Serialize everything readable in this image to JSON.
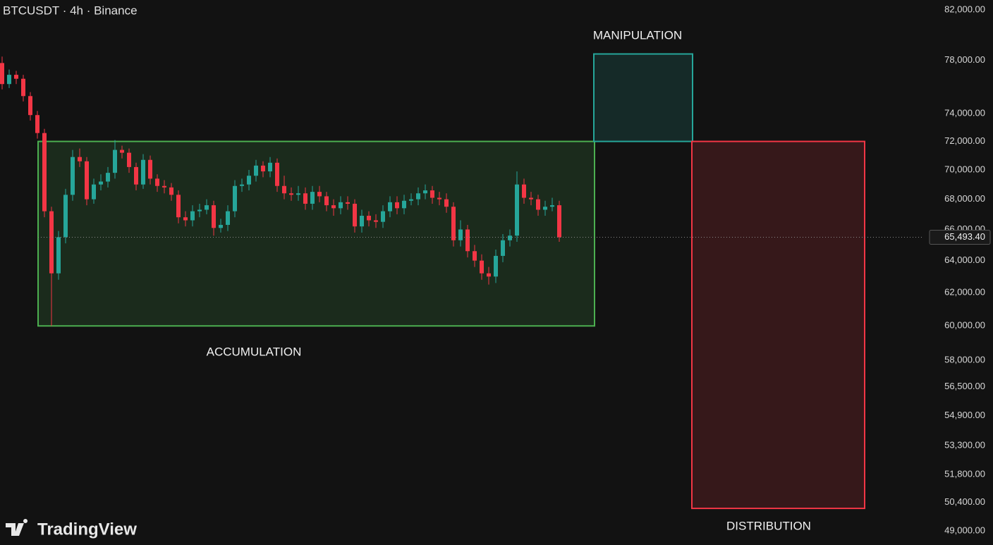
{
  "chart_data": {
    "type": "candlestick",
    "title": "BTCUSDT · 4h · Binance",
    "logo": "TradingView",
    "log_scale": true,
    "ylim": [
      48320,
      82800
    ],
    "yticks": [
      {
        "value": 82000,
        "label": "82,000.00"
      },
      {
        "value": 78000,
        "label": "78,000.00"
      },
      {
        "value": 74000,
        "label": "74,000.00"
      },
      {
        "value": 72000,
        "label": "72,000.00"
      },
      {
        "value": 70000,
        "label": "70,000.00"
      },
      {
        "value": 68000,
        "label": "68,000.00"
      },
      {
        "value": 66000,
        "label": "66,000.00"
      },
      {
        "value": 64000,
        "label": "64,000.00"
      },
      {
        "value": 62000,
        "label": "62,000.00"
      },
      {
        "value": 60000,
        "label": "60,000.00"
      },
      {
        "value": 58000,
        "label": "58,000.00"
      },
      {
        "value": 56500,
        "label": "56,500.00"
      },
      {
        "value": 54900,
        "label": "54,900.00"
      },
      {
        "value": 53300,
        "label": "53,300.00"
      },
      {
        "value": 51800,
        "label": "51,800.00"
      },
      {
        "value": 50400,
        "label": "50,400.00"
      },
      {
        "value": 49000,
        "label": "49,000.00"
      }
    ],
    "up_color": "#26a69a",
    "down_color": "#f23645",
    "open": [
      77800,
      76200,
      76900,
      76600,
      75300,
      73900,
      72600,
      67200,
      63200,
      65500,
      68300,
      70900,
      70600,
      68000,
      69000,
      69200,
      69800,
      71400,
      71200,
      70200,
      69000,
      70700,
      69400,
      68900,
      68800,
      68300,
      66800,
      66600,
      67200,
      67300,
      67600,
      66100,
      66300,
      67200,
      68900,
      69000,
      69600,
      70300,
      69900,
      70500,
      68900,
      68400,
      68300,
      68400,
      67700,
      68500,
      68200,
      67600,
      67400,
      67800,
      67700,
      66200,
      66900,
      66600,
      66500,
      67200,
      67800,
      67400,
      67900,
      68000,
      68400,
      68600,
      68100,
      68000,
      67500,
      65300,
      66000,
      64600,
      64000,
      63200,
      63000,
      64300,
      65300,
      65600,
      69000,
      68100,
      68000,
      67300,
      67500,
      67600
    ],
    "high": [
      78300,
      77300,
      77200,
      76900,
      75600,
      74200,
      72900,
      67500,
      65900,
      68700,
      71400,
      71500,
      70900,
      69400,
      69700,
      70200,
      72100,
      71700,
      71500,
      70500,
      71100,
      71000,
      69700,
      69300,
      69100,
      68600,
      67200,
      67600,
      67700,
      68000,
      67900,
      66700,
      67600,
      69300,
      69400,
      70000,
      70700,
      70600,
      70900,
      70800,
      69600,
      68800,
      68900,
      68800,
      68900,
      68900,
      68500,
      68000,
      68200,
      68200,
      68000,
      67300,
      67200,
      67000,
      67600,
      68200,
      68200,
      68300,
      68400,
      68800,
      69000,
      68900,
      68500,
      68400,
      67800,
      66600,
      66300,
      65000,
      64400,
      63600,
      64700,
      65700,
      66000,
      69900,
      69400,
      68500,
      68300,
      67900,
      68100,
      67900
    ],
    "low": [
      75800,
      75900,
      76200,
      74900,
      73500,
      72200,
      66800,
      60000,
      62800,
      65100,
      67900,
      70200,
      67600,
      67700,
      68600,
      68800,
      69400,
      70800,
      69800,
      68600,
      68700,
      69000,
      68500,
      68400,
      67900,
      66400,
      66200,
      66200,
      66800,
      67000,
      65600,
      65800,
      65900,
      66800,
      68500,
      68600,
      69200,
      69500,
      69500,
      68500,
      68000,
      67900,
      67900,
      67300,
      67300,
      67800,
      67200,
      66900,
      67000,
      67300,
      65800,
      65800,
      66200,
      66100,
      66100,
      66800,
      67000,
      67000,
      67600,
      67600,
      68000,
      67700,
      67600,
      67100,
      64900,
      64900,
      64200,
      63600,
      62800,
      62500,
      62600,
      63900,
      64900,
      65200,
      67700,
      67600,
      66900,
      66900,
      67200,
      65200
    ],
    "close": [
      76200,
      76900,
      76600,
      75300,
      73900,
      72600,
      67200,
      63200,
      65500,
      68300,
      70900,
      70600,
      68000,
      69000,
      69200,
      69800,
      71400,
      71200,
      70200,
      69000,
      70700,
      69400,
      68900,
      68800,
      68300,
      66800,
      66600,
      67200,
      67300,
      67600,
      66100,
      66300,
      67200,
      68900,
      69000,
      69600,
      70300,
      69900,
      70500,
      68900,
      68400,
      68300,
      68400,
      67700,
      68500,
      68200,
      67600,
      67400,
      67800,
      67700,
      66200,
      66900,
      66600,
      66500,
      67200,
      67800,
      67400,
      67900,
      68000,
      68400,
      68600,
      68100,
      68000,
      67500,
      65300,
      66000,
      64600,
      64000,
      63200,
      63000,
      64300,
      65300,
      65600,
      69000,
      68100,
      68000,
      67300,
      67500,
      67600,
      65493.4
    ],
    "last_price_label": "65,493.40",
    "zones": [
      {
        "name": "ACCUMULATION",
        "low": 60000,
        "high": 72000,
        "color": "#4caf50"
      },
      {
        "name": "MANIPULATION",
        "low": 72000,
        "high": 78500,
        "color": "#26a69a"
      },
      {
        "name": "DISTRIBUTION",
        "low": 50100,
        "high": 72000,
        "color": "#f23645"
      }
    ]
  }
}
